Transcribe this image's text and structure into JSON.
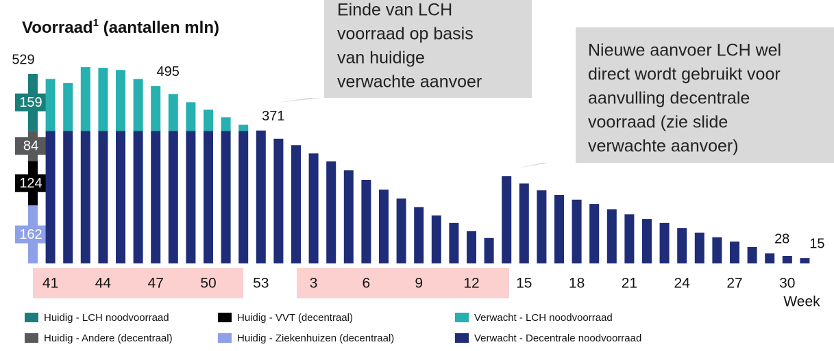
{
  "chart_data": {
    "type": "bar",
    "stacked": true,
    "title_parts": [
      "Voorraad",
      "1",
      " (aantallen mln)"
    ],
    "x_label": "Week",
    "categories": [
      null,
      "41",
      null,
      null,
      "44",
      null,
      null,
      "47",
      null,
      null,
      "50",
      null,
      null,
      "53",
      null,
      null,
      "3",
      null,
      null,
      "6",
      null,
      null,
      "9",
      null,
      null,
      "12",
      null,
      null,
      "15",
      null,
      null,
      "18",
      null,
      null,
      "21",
      null,
      null,
      "24",
      null,
      null,
      "27",
      null,
      null,
      "30",
      null
    ],
    "ylim": [
      0,
      560
    ],
    "series": [
      {
        "name": "Huidig - Ziekenhuizen (decentraal)",
        "color": "#8da0e8",
        "values": [
          162,
          null,
          null,
          null,
          null,
          null,
          null,
          null,
          null,
          null,
          null,
          null,
          null,
          null,
          null,
          null,
          null,
          null,
          null,
          null,
          null,
          null,
          null,
          null,
          null,
          null,
          null,
          null,
          null,
          null,
          null,
          null,
          null,
          null,
          null,
          null,
          null,
          null,
          null,
          null,
          null,
          null,
          null,
          null,
          null
        ]
      },
      {
        "name": "Huidig - VVT (decentraal)",
        "color": "#000000",
        "values": [
          124,
          null,
          null,
          null,
          null,
          null,
          null,
          null,
          null,
          null,
          null,
          null,
          null,
          null,
          null,
          null,
          null,
          null,
          null,
          null,
          null,
          null,
          null,
          null,
          null,
          null,
          null,
          null,
          null,
          null,
          null,
          null,
          null,
          null,
          null,
          null,
          null,
          null,
          null,
          null,
          null,
          null,
          null,
          null,
          null
        ]
      },
      {
        "name": "Huidig - Andere (decentraal)",
        "color": "#58595b",
        "values": [
          84,
          null,
          null,
          null,
          null,
          null,
          null,
          null,
          null,
          null,
          null,
          null,
          null,
          null,
          null,
          null,
          null,
          null,
          null,
          null,
          null,
          null,
          null,
          null,
          null,
          null,
          null,
          null,
          null,
          null,
          null,
          null,
          null,
          null,
          null,
          null,
          null,
          null,
          null,
          null,
          null,
          null,
          null,
          null,
          null
        ]
      },
      {
        "name": "Huidig - LCH noodvoorraad",
        "color": "#1a7f7a",
        "values": [
          159,
          null,
          null,
          null,
          null,
          null,
          null,
          null,
          null,
          null,
          null,
          null,
          null,
          null,
          null,
          null,
          null,
          null,
          null,
          null,
          null,
          null,
          null,
          null,
          null,
          null,
          null,
          null,
          null,
          null,
          null,
          null,
          null,
          null,
          null,
          null,
          null,
          null,
          null,
          null,
          null,
          null,
          null,
          null,
          null
        ]
      },
      {
        "name": "Verwacht - Decentrale noodvoorraad",
        "color": "#1f2d78",
        "values": [
          null,
          370,
          370,
          370,
          370,
          370,
          370,
          370,
          370,
          370,
          370,
          370,
          370,
          371,
          348,
          330,
          307,
          285,
          260,
          233,
          206,
          181,
          157,
          134,
          113,
          90,
          71,
          244,
          223,
          204,
          191,
          178,
          166,
          151,
          137,
          124,
          113,
          99,
          86,
          73,
          61,
          46,
          28,
          21,
          15
        ]
      },
      {
        "name": "Verwacht - LCH noodvoorraad",
        "color": "#26b0b0",
        "values": [
          null,
          145,
          134,
          178,
          176,
          170,
          145,
          125,
          103,
          80,
          59,
          38,
          17,
          null,
          null,
          null,
          null,
          null,
          null,
          null,
          null,
          null,
          null,
          null,
          null,
          null,
          null,
          null,
          null,
          null,
          null,
          null,
          null,
          null,
          null,
          null,
          null,
          null,
          null,
          null,
          null,
          null,
          null,
          null,
          null
        ]
      }
    ],
    "totals": [
      529,
      null,
      null,
      null,
      null,
      null,
      null,
      495,
      null,
      null,
      null,
      null,
      null,
      371,
      null,
      null,
      null,
      null,
      null,
      null,
      null,
      null,
      null,
      null,
      null,
      null,
      null,
      null,
      null,
      null,
      null,
      null,
      null,
      null,
      null,
      null,
      null,
      null,
      null,
      null,
      null,
      null,
      28,
      null,
      15
    ],
    "annotations": [
      {
        "lines": [
          "Einde van LCH",
          "voorraad op basis",
          "van huidige",
          "verwachte aanvoer"
        ]
      },
      {
        "lines": [
          "Nieuwe aanvoer LCH wel",
          "direct wordt gebruikt voor",
          "aanvulling decentrale",
          "voorraad (zie slide",
          "verwachte aanvoer)"
        ]
      }
    ]
  }
}
